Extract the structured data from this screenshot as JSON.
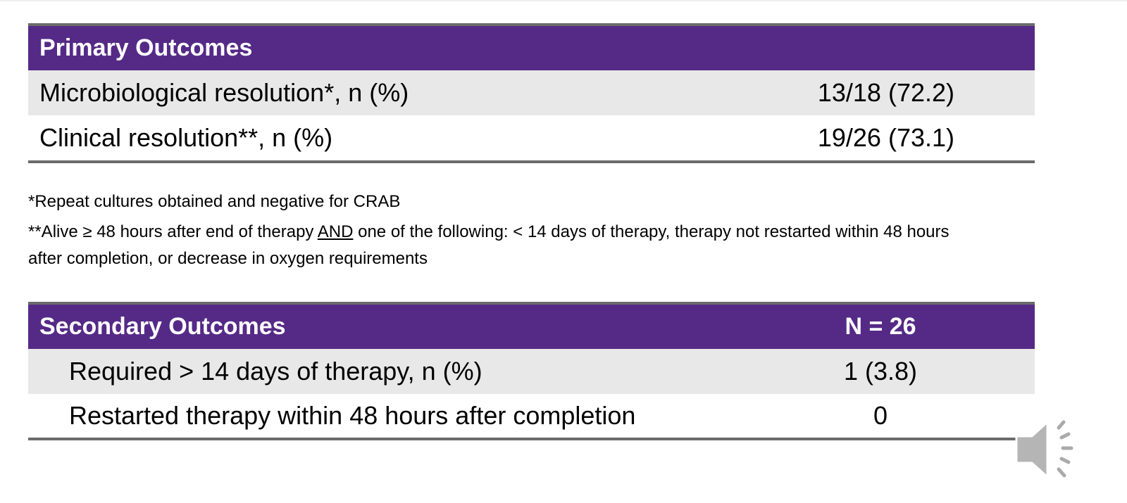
{
  "primary": {
    "title": "Primary Outcomes",
    "rows": [
      {
        "label": "Microbiological resolution*, n (%)",
        "value": "13/18 (72.2)"
      },
      {
        "label": "Clinical resolution**, n (%)",
        "value": "19/26 (73.1)"
      }
    ]
  },
  "footnotes": {
    "f1": "*Repeat cultures obtained and negative for CRAB",
    "f2_pre": "**Alive ≥ 48 hours after end of therapy ",
    "f2_and": "AND",
    "f2_post": " one of the following: < 14 days of therapy, therapy not restarted within 48 hours after completion, or decrease in oxygen requirements"
  },
  "secondary": {
    "title": "Secondary Outcomes",
    "n_label": "N = 26",
    "rows": [
      {
        "label": "Required > 14 days of therapy, n (%)",
        "value": "1 (3.8)"
      },
      {
        "label": "Restarted therapy within 48 hours after completion",
        "value": "0"
      }
    ]
  },
  "colors": {
    "header": "#552a87",
    "row_alt": "#e8e8e8",
    "border": "#6b6b6b"
  },
  "icons": {
    "audio": "speaker-icon"
  }
}
